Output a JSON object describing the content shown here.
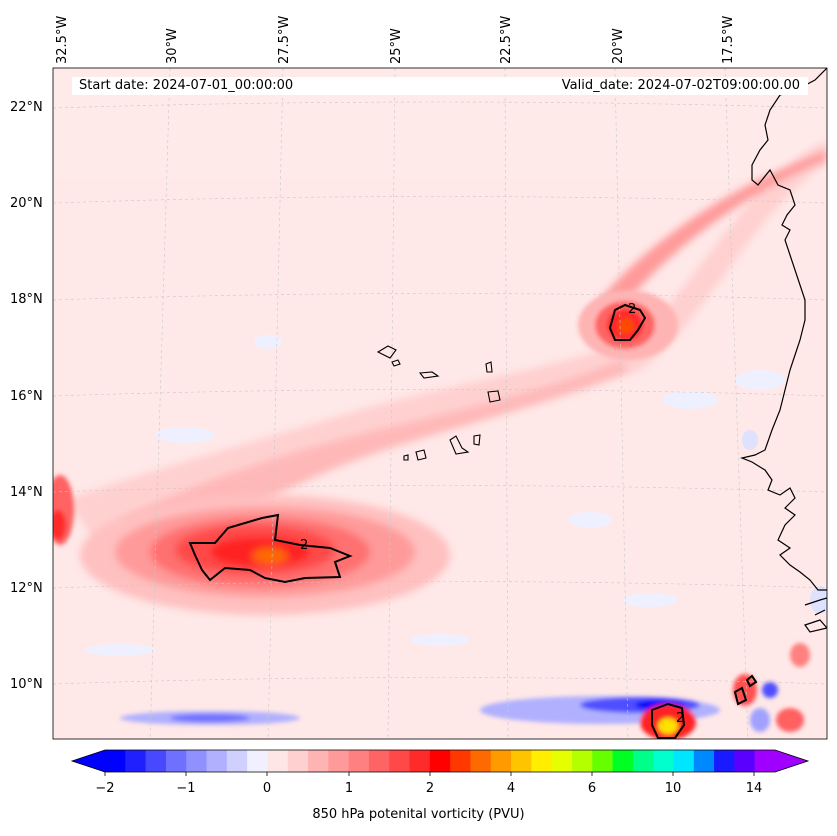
{
  "header": {
    "start_date": "Start date: 2024-07-01_00:00:00",
    "valid_date": "Valid_date: 2024-07-02T09:00:00.00"
  },
  "lon_labels": [
    "32.5°W",
    "30°W",
    "27.5°W",
    "25°W",
    "22.5°W",
    "20°W",
    "17.5°W"
  ],
  "lat_labels": [
    "22°N",
    "20°N",
    "18°N",
    "16°N",
    "14°N",
    "12°N",
    "10°N"
  ],
  "contour_labels": [
    "2",
    "2",
    "2"
  ],
  "colorbar": {
    "label": "850 hPa potenital vorticity (PVU)",
    "ticks": [
      "−2",
      "−1",
      "0",
      "1",
      "2",
      "4",
      "6",
      "10",
      "14"
    ],
    "colors": [
      "#0000ff",
      "#2020ff",
      "#4848ff",
      "#7070ff",
      "#9090ff",
      "#b0b0ff",
      "#d0d0ff",
      "#f0f0ff",
      "#ffe6e6",
      "#ffd0d0",
      "#ffb4b4",
      "#ff9a9a",
      "#ff8080",
      "#ff6464",
      "#ff4848",
      "#ff2a2a",
      "#ff0000",
      "#ff3800",
      "#ff6a00",
      "#ff9a00",
      "#ffc400",
      "#ffee00",
      "#e6ff00",
      "#b4ff00",
      "#66ff00",
      "#00ff22",
      "#00ff88",
      "#00ffcc",
      "#00e6ff",
      "#0088ff",
      "#1a1aff",
      "#5a00ff",
      "#a000ff"
    ]
  }
}
